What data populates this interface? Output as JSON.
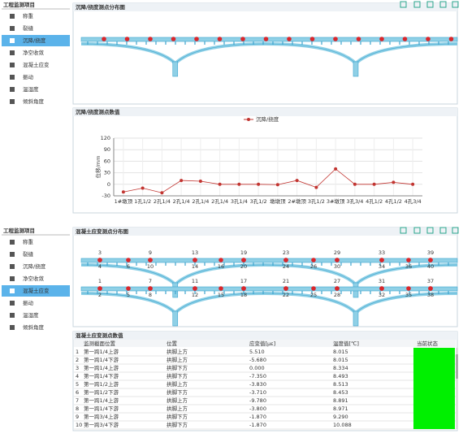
{
  "screens": [
    {
      "sidebar": {
        "title": "工程监测项目",
        "items": [
          "称重",
          "裂缝",
          "沉降/挠度",
          "净空收敛",
          "混凝土应变",
          "振动",
          "温湿度",
          "倾斜角度"
        ],
        "selected": 2
      },
      "panels": [
        {
          "title": "沉降/挠度测点分布图"
        },
        {
          "title": "沉降/挠度测点数值"
        }
      ]
    },
    {
      "sidebar": {
        "title": "工程监测项目",
        "items": [
          "称重",
          "裂缝",
          "沉降/挠度",
          "净空收敛",
          "混凝土应变",
          "振动",
          "温湿度",
          "倾斜角度"
        ],
        "selected": 4
      },
      "panels": [
        {
          "title": "混凝土应变测点分布图"
        },
        {
          "title": "混凝土应变测点数值"
        }
      ],
      "bridges": [
        {
          "top": [
            "3",
            "9",
            "13",
            "19",
            "23",
            "29",
            "33",
            "39"
          ],
          "bottom": [
            "4",
            "6",
            "10",
            "14",
            "16",
            "20",
            "24",
            "26",
            "30",
            "34",
            "36",
            "40"
          ]
        },
        {
          "top": [
            "1",
            "7",
            "11",
            "17",
            "21",
            "27",
            "31",
            "37"
          ],
          "bottom": [
            "2",
            "5",
            "8",
            "12",
            "15",
            "18",
            "22",
            "25",
            "28",
            "32",
            "35",
            "38"
          ]
        }
      ],
      "table": {
        "columns": [
          "监测截面位置",
          "位置",
          "应变值[με]",
          "温度值[℃]",
          "当前状态"
        ],
        "rows": [
          [
            "1",
            "第一跨1/4上游",
            "拱脚上方",
            "5.510",
            "8.015"
          ],
          [
            "2",
            "第一跨1/4下游",
            "拱脚上方",
            "-5.680",
            "8.015"
          ],
          [
            "3",
            "第一跨1/4上游",
            "拱脚下方",
            "0.000",
            "8.334"
          ],
          [
            "4",
            "第一跨1/4下游",
            "拱脚下方",
            "-7.350",
            "8.493"
          ],
          [
            "5",
            "第一跨1/2上游",
            "拱脚上方",
            "-3.830",
            "8.513"
          ],
          [
            "6",
            "第一跨1/2下游",
            "拱脚下方",
            "-3.710",
            "8.453"
          ],
          [
            "7",
            "第一跨1/4上游",
            "拱脚上方",
            "-9.780",
            "8.891"
          ],
          [
            "8",
            "第一跨1/4下游",
            "拱脚上方",
            "-3.800",
            "8.971"
          ],
          [
            "9",
            "第一跨3/4上游",
            "拱脚下方",
            "-1.870",
            "9.290"
          ],
          [
            "10",
            "第一跨3/4下游",
            "拱脚下方",
            "-1.870",
            "10.088"
          ]
        ]
      }
    }
  ],
  "chart_data": {
    "type": "line",
    "y_label": "位移/mm",
    "categories": [
      "1#墩顶",
      "1孔1/2",
      "2孔1/4",
      "2孔1/4",
      "2孔1/4",
      "2孔1/4",
      "3孔1/4",
      "3孔1/2",
      "墩墩顶",
      "2#墩顶",
      "3孔1/2",
      "3#墩顶",
      "3孔3/4",
      "4孔1/2",
      "4孔1/2",
      "4孔3/4"
    ],
    "series": [
      {
        "name": "沉降/挠度",
        "color": "#c23531",
        "values": [
          -20,
          -10,
          -22,
          10,
          8,
          0,
          0,
          0,
          -1,
          10,
          -8,
          40,
          0,
          0,
          5,
          0
        ]
      }
    ],
    "ylim": [
      -30,
      120
    ],
    "yticks": [
      -30,
      0,
      30,
      60,
      90,
      120
    ],
    "grid": true
  }
}
